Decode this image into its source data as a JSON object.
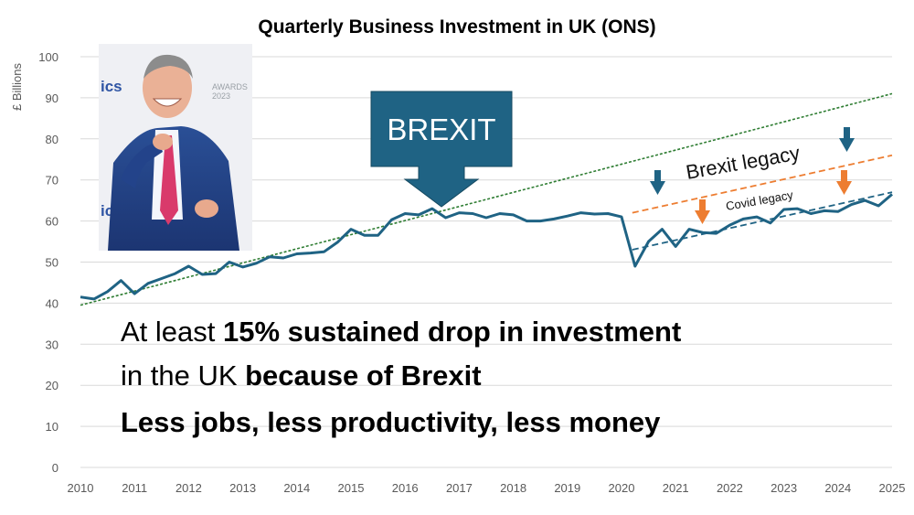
{
  "chart_data": {
    "type": "line",
    "title": "Quarterly Business Investment in UK (ONS)",
    "ylabel": "£ Billions",
    "xlabel": "",
    "ylim": [
      0,
      100
    ],
    "xlim": [
      2010,
      2025
    ],
    "y_ticks": [
      "0",
      "10",
      "20",
      "30",
      "40",
      "50",
      "60",
      "70",
      "80",
      "90",
      "100"
    ],
    "x_ticks": [
      "2010",
      "2011",
      "2012",
      "2013",
      "2014",
      "2015",
      "2016",
      "2017",
      "2018",
      "2019",
      "2020",
      "2021",
      "2022",
      "2023",
      "2024",
      "2025"
    ],
    "grid": true,
    "series": [
      {
        "color": "#1f6384",
        "x": [
          2010.0,
          2010.25,
          2010.5,
          2010.75,
          2011.0,
          2011.25,
          2011.5,
          2011.75,
          2012.0,
          2012.25,
          2012.5,
          2012.75,
          2013.0,
          2013.25,
          2013.5,
          2013.75,
          2014.0,
          2014.25,
          2014.5,
          2014.75,
          2015.0,
          2015.25,
          2015.5,
          2015.75,
          2016.0,
          2016.25,
          2016.5,
          2016.75,
          2017.0,
          2017.25,
          2017.5,
          2017.75,
          2018.0,
          2018.25,
          2018.5,
          2018.75,
          2019.0,
          2019.25,
          2019.5,
          2019.75,
          2020.0,
          2020.25,
          2020.5,
          2020.75,
          2021.0,
          2021.25,
          2021.5,
          2021.75,
          2022.0,
          2022.25,
          2022.5,
          2022.75,
          2023.0,
          2023.25,
          2023.5,
          2023.75,
          2024.0,
          2024.25,
          2024.5,
          2024.75,
          2025.0
        ],
        "values": [
          41.5,
          41.0,
          42.8,
          45.5,
          42.3,
          44.8,
          46.0,
          47.2,
          49.0,
          47.0,
          47.2,
          50.0,
          48.8,
          49.7,
          51.3,
          51.0,
          52.0,
          52.2,
          52.5,
          54.8,
          58.0,
          56.5,
          56.5,
          60.3,
          61.8,
          61.5,
          63.0,
          60.8,
          62.0,
          61.8,
          60.8,
          61.8,
          61.5,
          60.0,
          60.0,
          60.5,
          61.2,
          62.0,
          61.7,
          61.8,
          61.0,
          49.0,
          55.0,
          58.0,
          53.8,
          58.0,
          57.2,
          57.0,
          59.0,
          60.5,
          61.0,
          59.5,
          62.8,
          63.0,
          61.8,
          62.5,
          62.3,
          64.0,
          65.0,
          63.7,
          66.5
        ]
      }
    ],
    "trend_lines": [
      {
        "name": "pre-brexit trend",
        "color": "#2e7d32",
        "dash": "dotted",
        "x": [
          2010,
          2025
        ],
        "values": [
          39.5,
          91.0
        ]
      },
      {
        "name": "brexit legacy trend",
        "color": "#ed7d31",
        "dash": "dashed",
        "x": [
          2020.2,
          2025
        ],
        "values": [
          62.0,
          76.0
        ]
      },
      {
        "name": "covid legacy trend",
        "color": "#1f6384",
        "dash": "dashed",
        "x": [
          2020.2,
          2025
        ],
        "values": [
          53.0,
          67.0
        ]
      }
    ],
    "annotations": {
      "brexit_box": "BREXIT",
      "brexit_legacy": "Brexit legacy",
      "covid_legacy": "Covid legacy",
      "headline_1a": "At least ",
      "headline_1b": "15% sustained drop in investment",
      "headline_2a": "in the UK ",
      "headline_2b": "because of Brexit",
      "headline_3": "Less jobs, less productivity, less money"
    },
    "photo_text": {
      "left_fragment_1": "ics",
      "left_fragment_2": "ics",
      "awards": "AWARDS",
      "year": "2023"
    },
    "colors": {
      "line": "#1f6384",
      "brexit_box": "#1f6384",
      "legacy_arrow": "#ed7d31",
      "trend_green": "#2e7d32"
    }
  }
}
